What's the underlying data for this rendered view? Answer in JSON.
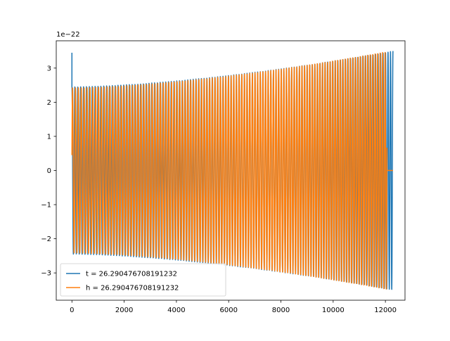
{
  "chart_data": {
    "type": "line",
    "title": "",
    "xlabel": "",
    "ylabel": "",
    "y_offset_label": "1e−22",
    "xlim": [
      -600,
      12750
    ],
    "ylim": [
      -3.8,
      3.8
    ],
    "x_ticks": [
      0,
      2000,
      4000,
      6000,
      8000,
      10000,
      12000
    ],
    "x_tick_labels": [
      "0",
      "2000",
      "4000",
      "6000",
      "8000",
      "10000",
      "12000"
    ],
    "y_ticks": [
      -3,
      -2,
      -1,
      0,
      1,
      2,
      3
    ],
    "y_tick_labels": [
      "−3",
      "−2",
      "−1",
      "0",
      "1",
      "2",
      "3"
    ],
    "grid": false,
    "legend_position": "lower-left",
    "series": [
      {
        "name": "t = 26.290476708191232",
        "color": "#1f77b4",
        "x_start": 0,
        "x_end": 12290,
        "initial_spike": 3.45,
        "amplitude_start": 2.45,
        "amplitude_end": 3.5,
        "cycles": 120
      },
      {
        "name": "h = 26.290476708191232",
        "color": "#ff7f0e",
        "x_start": 0,
        "x_end": 12060,
        "initial_value": 0.45,
        "amplitude_start": 2.42,
        "amplitude_end": 3.48,
        "cycles": 118,
        "tail_x_end": 12290,
        "tail_value": 0.0
      }
    ]
  }
}
